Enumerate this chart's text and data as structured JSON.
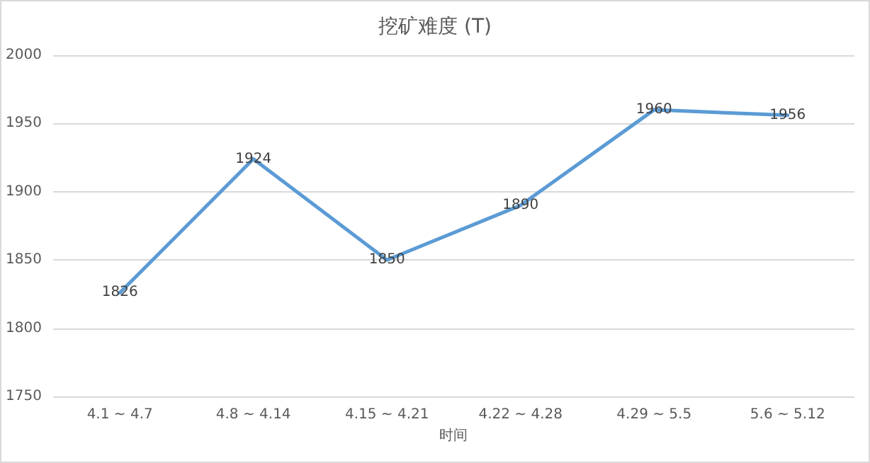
{
  "chart_data": {
    "type": "line",
    "title": "挖矿难度 (T)",
    "xlabel": "时间",
    "categories": [
      "4.1 ~ 4.7",
      "4.8 ~ 4.14",
      "4.15 ~ 4.21",
      "4.22 ~ 4.28",
      "4.29 ~ 5.5",
      "5.6 ~ 5.12"
    ],
    "series": [
      {
        "color": "#5b9bd5",
        "values": [
          1826,
          1924,
          1850,
          1890,
          1960,
          1956
        ]
      }
    ],
    "ylim": [
      1750,
      2000
    ],
    "yticks": [
      1750,
      1800,
      1850,
      1900,
      1950,
      2000
    ],
    "grid": "y",
    "data_labels": true,
    "marker": "none",
    "line_style": "solid",
    "legend": false
  }
}
